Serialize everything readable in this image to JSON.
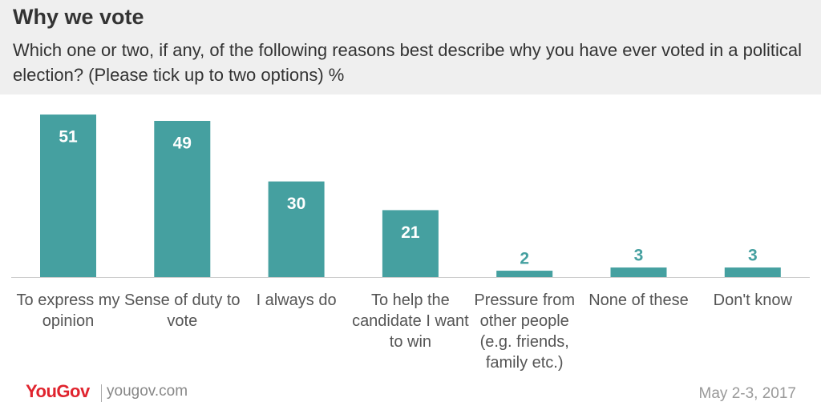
{
  "chart_data": {
    "type": "bar",
    "title": "Why we vote",
    "subtitle": "Which one or two, if any, of the following reasons best describe why you have ever voted in a political election? (Please tick up to two options) %",
    "categories": [
      "To express my opinion",
      "Sense of duty to vote",
      "I always do",
      "To help the candidate I want to win",
      "Pressure from other people (e.g. friends, family etc.)",
      "None of these",
      "Don't know"
    ],
    "values": [
      51,
      49,
      30,
      21,
      2,
      3,
      3
    ],
    "color": "#45a0a0"
  },
  "footer": {
    "brand": "YouGov",
    "website": "yougov.com",
    "date": "May 2-3, 2017"
  }
}
